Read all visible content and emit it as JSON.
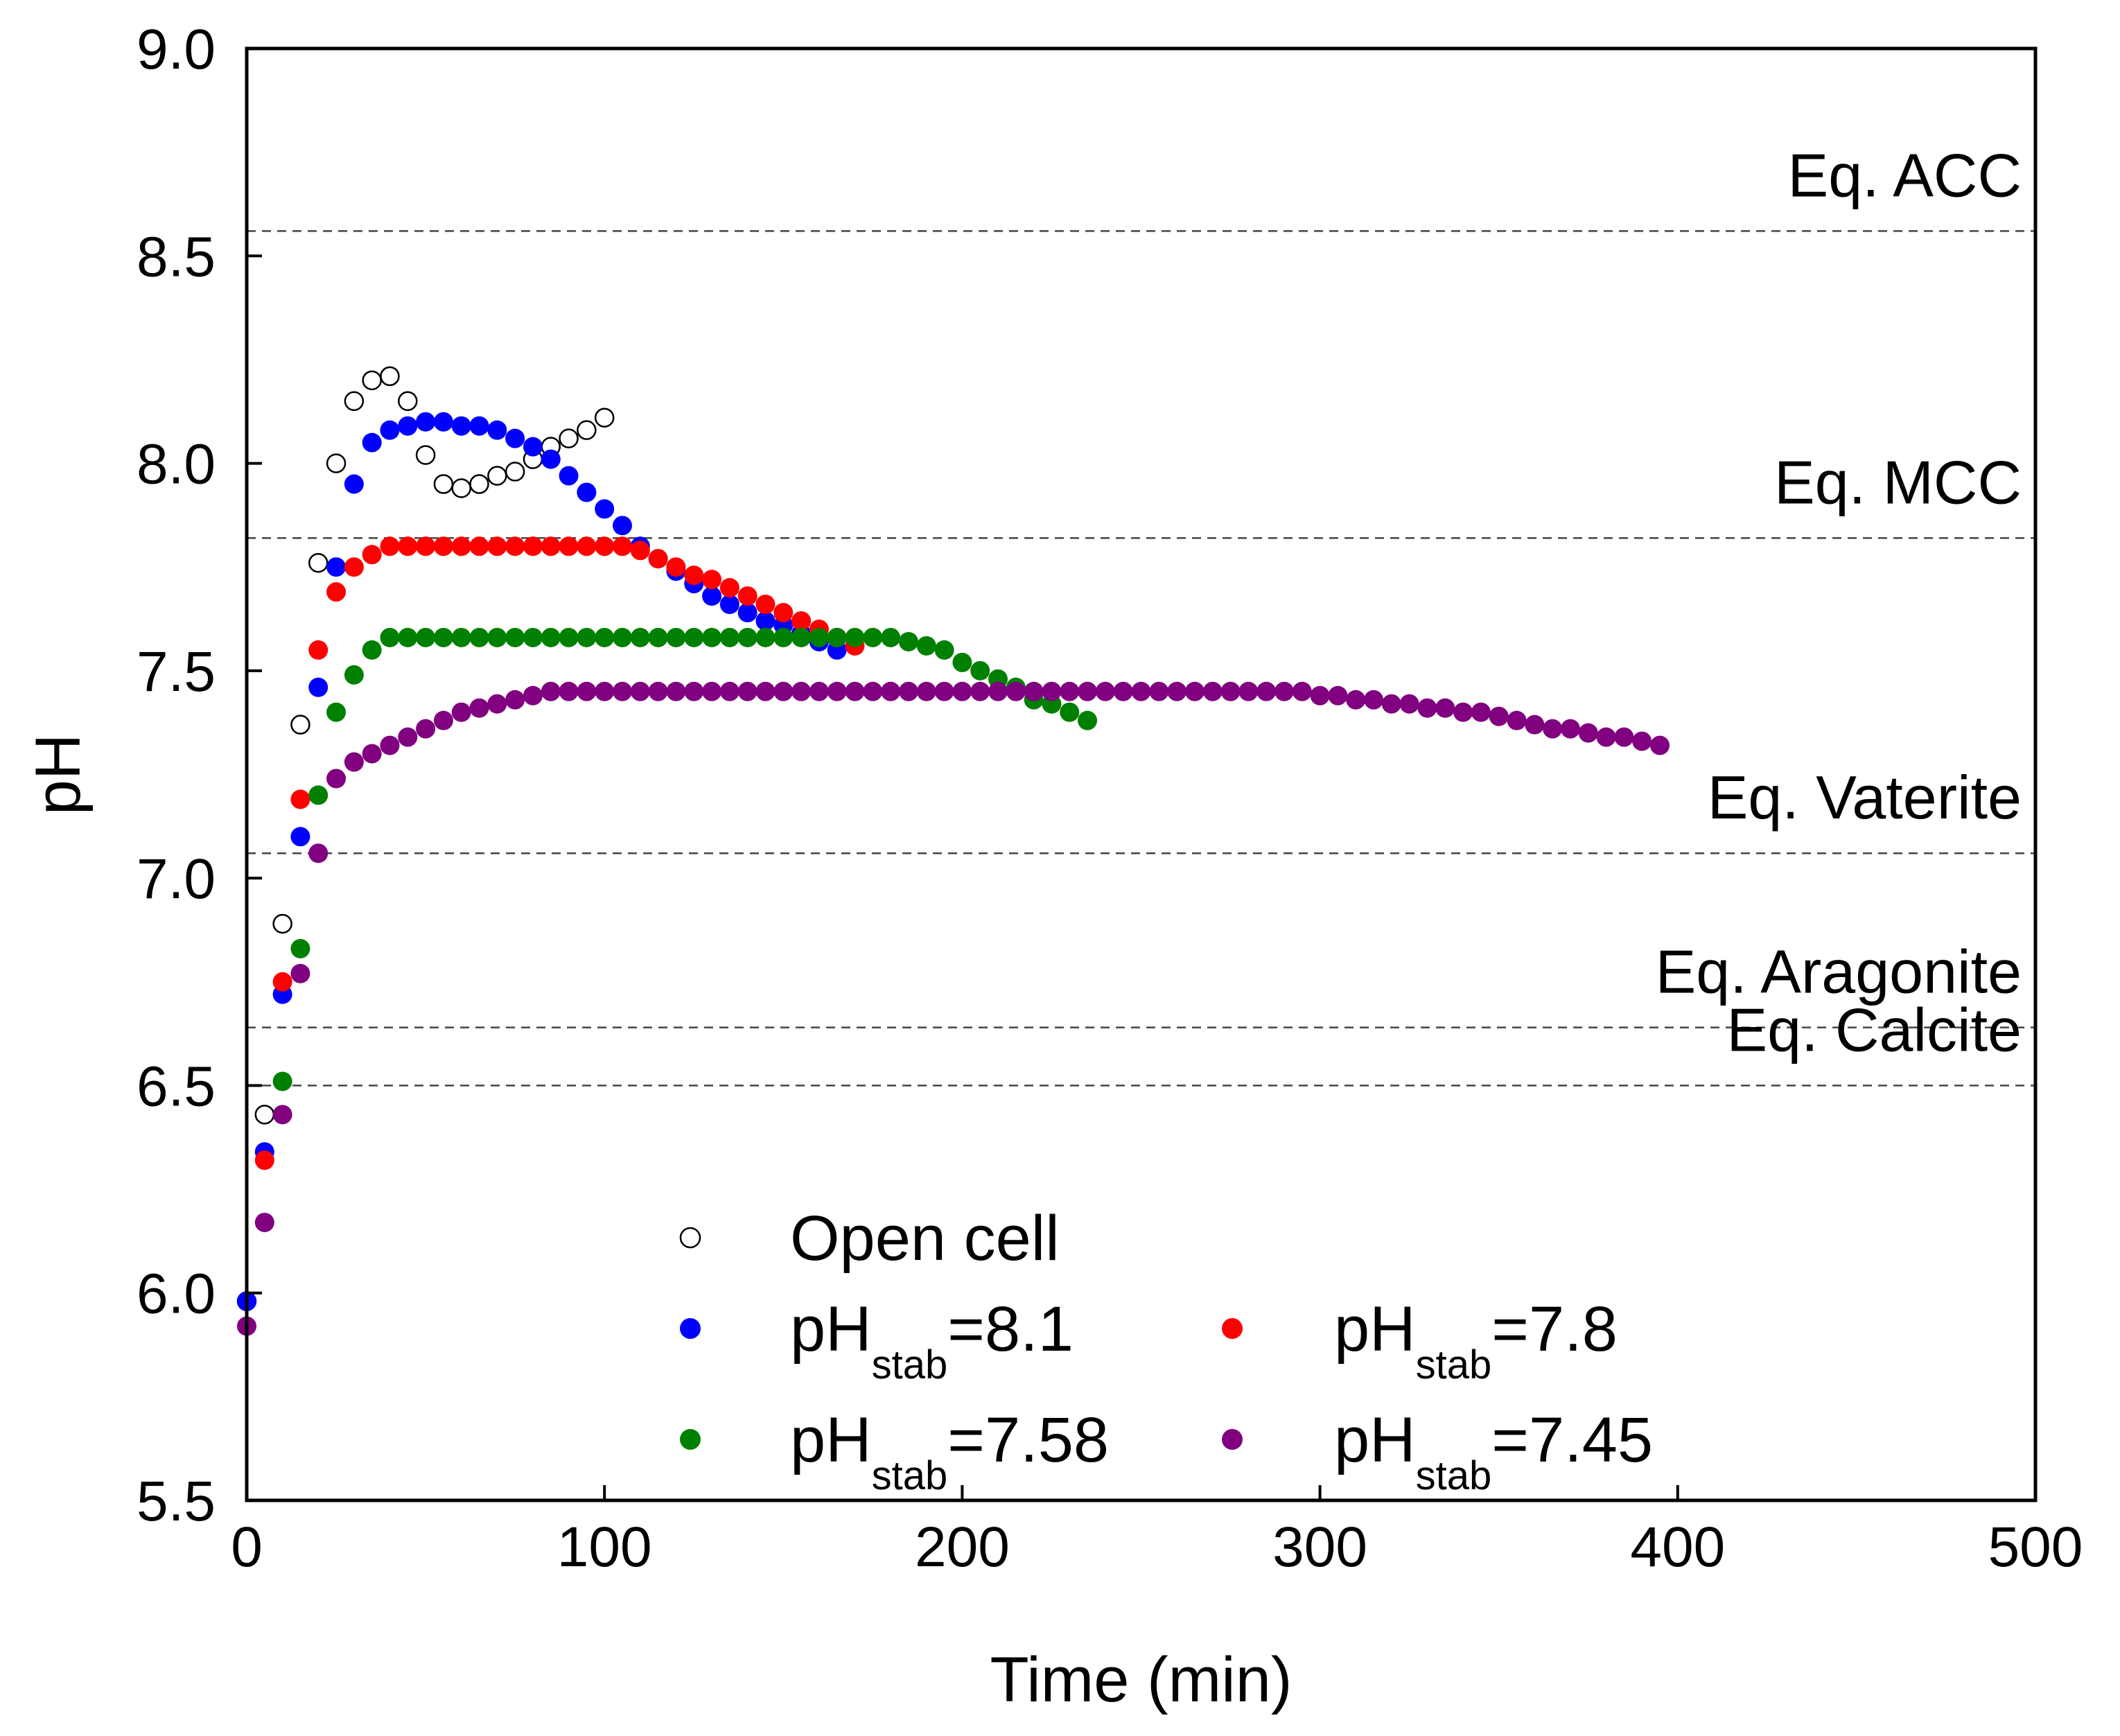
{
  "chart_data": {
    "type": "scatter",
    "title": "",
    "xlabel": "Time (min)",
    "ylabel": "pH",
    "xlim": [
      0,
      500
    ],
    "ylim": [
      5.5,
      9.0
    ],
    "xticks": [
      0,
      100,
      200,
      300,
      400,
      500
    ],
    "yticks": [
      5.5,
      6.0,
      6.5,
      7.0,
      7.5,
      8.0,
      8.5,
      9.0
    ],
    "xtick_labels": [
      "0",
      "100",
      "200",
      "300",
      "400",
      "500"
    ],
    "ytick_labels": [
      "5.5",
      "6.0",
      "6.5",
      "7.0",
      "7.5",
      "8.0",
      "8.5",
      "9.0"
    ],
    "grid": false,
    "legend_position": "bottom-center",
    "reference_lines": [
      {
        "label": "Eq. ACC",
        "y": 8.56
      },
      {
        "label": "Eq. MCC",
        "y": 7.82
      },
      {
        "label": "Eq. Vaterite",
        "y": 7.06
      },
      {
        "label": "Eq. Aragonite",
        "y": 6.64
      },
      {
        "label": "Eq. Calcite",
        "y": 6.5
      }
    ],
    "series": [
      {
        "name": "Open cell",
        "legend_text": "Open cell",
        "legend_sub": "",
        "legend_rest": "",
        "color": "#000000",
        "marker": "open-circle",
        "x": [
          0,
          5,
          10,
          15,
          20,
          25,
          30,
          35,
          40,
          45,
          50,
          55,
          60,
          65,
          70,
          75,
          80,
          85,
          90,
          95,
          100
        ],
        "y": [
          5.98,
          6.43,
          6.89,
          7.37,
          7.76,
          8.0,
          8.15,
          8.2,
          8.21,
          8.15,
          8.02,
          7.95,
          7.94,
          7.95,
          7.97,
          7.98,
          8.01,
          8.04,
          8.06,
          8.08,
          8.11
        ]
      },
      {
        "name": "pHstab=8.1",
        "legend_text": "pH",
        "legend_sub": "stab",
        "legend_rest": "=8.1",
        "color": "#0000ff",
        "marker": "filled-circle",
        "x": [
          0,
          5,
          10,
          15,
          20,
          25,
          30,
          35,
          40,
          45,
          50,
          55,
          60,
          65,
          70,
          75,
          80,
          85,
          90,
          95,
          100,
          105,
          110,
          115,
          120,
          125,
          130,
          135,
          140,
          145,
          150,
          155,
          160,
          165
        ],
        "y": [
          5.98,
          6.34,
          6.72,
          7.1,
          7.46,
          7.75,
          7.95,
          8.05,
          8.08,
          8.09,
          8.1,
          8.1,
          8.09,
          8.09,
          8.08,
          8.06,
          8.04,
          8.01,
          7.97,
          7.93,
          7.89,
          7.85,
          7.8,
          7.77,
          7.74,
          7.71,
          7.68,
          7.66,
          7.64,
          7.62,
          7.61,
          7.59,
          7.57,
          7.55
        ]
      },
      {
        "name": "pHstab=7.8",
        "legend_text": "pH",
        "legend_sub": "stab",
        "legend_rest": "=7.8",
        "color": "#ff0000",
        "marker": "filled-circle",
        "x": [
          5,
          10,
          15,
          20,
          25,
          30,
          35,
          40,
          45,
          50,
          55,
          60,
          65,
          70,
          75,
          80,
          85,
          90,
          95,
          100,
          105,
          110,
          115,
          120,
          125,
          130,
          135,
          140,
          145,
          150,
          155,
          160,
          165,
          170
        ],
        "y": [
          6.32,
          6.75,
          7.19,
          7.55,
          7.69,
          7.75,
          7.78,
          7.8,
          7.8,
          7.8,
          7.8,
          7.8,
          7.8,
          7.8,
          7.8,
          7.8,
          7.8,
          7.8,
          7.8,
          7.8,
          7.8,
          7.79,
          7.77,
          7.75,
          7.73,
          7.72,
          7.7,
          7.68,
          7.66,
          7.64,
          7.62,
          7.6,
          7.58,
          7.56
        ]
      },
      {
        "name": "pHstab=7.58",
        "legend_text": "pH",
        "legend_sub": "stab",
        "legend_rest": "=7.58",
        "color": "#008000",
        "marker": "filled-circle",
        "x": [
          10,
          15,
          20,
          25,
          30,
          35,
          40,
          45,
          50,
          55,
          60,
          65,
          70,
          75,
          80,
          85,
          90,
          95,
          100,
          105,
          110,
          115,
          120,
          125,
          130,
          135,
          140,
          145,
          150,
          155,
          160,
          165,
          170,
          175,
          180,
          185,
          190,
          195,
          200,
          205,
          210,
          215,
          220,
          225,
          230,
          235
        ],
        "y": [
          6.51,
          6.83,
          7.2,
          7.4,
          7.49,
          7.55,
          7.58,
          7.58,
          7.58,
          7.58,
          7.58,
          7.58,
          7.58,
          7.58,
          7.58,
          7.58,
          7.58,
          7.58,
          7.58,
          7.58,
          7.58,
          7.58,
          7.58,
          7.58,
          7.58,
          7.58,
          7.58,
          7.58,
          7.58,
          7.58,
          7.58,
          7.58,
          7.58,
          7.58,
          7.58,
          7.57,
          7.56,
          7.55,
          7.52,
          7.5,
          7.48,
          7.46,
          7.43,
          7.42,
          7.4,
          7.38
        ]
      },
      {
        "name": "pHstab=7.45",
        "legend_text": "pH",
        "legend_sub": "stab",
        "legend_rest": "=7.45",
        "color": "#800080",
        "marker": "filled-circle",
        "x": [
          0,
          5,
          10,
          15,
          20,
          25,
          30,
          35,
          40,
          45,
          50,
          55,
          60,
          65,
          70,
          75,
          80,
          85,
          90,
          95,
          100,
          105,
          110,
          115,
          120,
          125,
          130,
          135,
          140,
          145,
          150,
          155,
          160,
          165,
          170,
          175,
          180,
          185,
          190,
          195,
          200,
          205,
          210,
          215,
          220,
          225,
          230,
          235,
          240,
          245,
          250,
          255,
          260,
          265,
          270,
          275,
          280,
          285,
          290,
          295,
          300,
          305,
          310,
          315,
          320,
          325,
          330,
          335,
          340,
          345,
          350,
          355,
          360,
          365,
          370,
          375,
          380,
          385,
          390,
          395
        ],
        "y": [
          5.92,
          6.17,
          6.43,
          6.77,
          7.06,
          7.24,
          7.28,
          7.3,
          7.32,
          7.34,
          7.36,
          7.38,
          7.4,
          7.41,
          7.42,
          7.43,
          7.44,
          7.45,
          7.45,
          7.45,
          7.45,
          7.45,
          7.45,
          7.45,
          7.45,
          7.45,
          7.45,
          7.45,
          7.45,
          7.45,
          7.45,
          7.45,
          7.45,
          7.45,
          7.45,
          7.45,
          7.45,
          7.45,
          7.45,
          7.45,
          7.45,
          7.45,
          7.45,
          7.45,
          7.45,
          7.45,
          7.45,
          7.45,
          7.45,
          7.45,
          7.45,
          7.45,
          7.45,
          7.45,
          7.45,
          7.45,
          7.45,
          7.45,
          7.45,
          7.45,
          7.44,
          7.44,
          7.43,
          7.43,
          7.42,
          7.42,
          7.41,
          7.41,
          7.4,
          7.4,
          7.39,
          7.38,
          7.37,
          7.36,
          7.36,
          7.35,
          7.34,
          7.34,
          7.33,
          7.32
        ]
      }
    ]
  }
}
